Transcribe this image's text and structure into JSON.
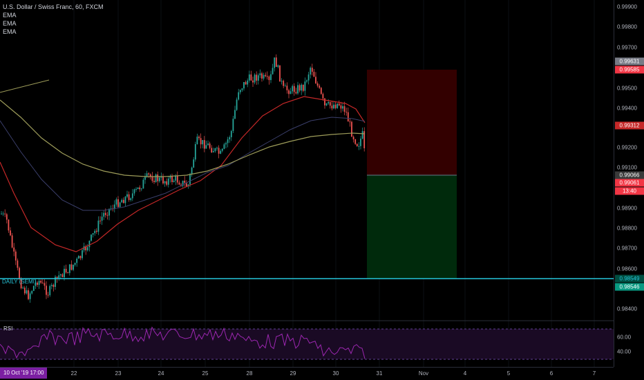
{
  "legend": {
    "title": "U.S. Dollar / Swiss Franc, 60, FXCM",
    "indicators": [
      "EMA",
      "EMA",
      "EMA"
    ]
  },
  "level_label": "DAILY (SEMI)",
  "rsi": {
    "label": "RSI",
    "ticks": [
      "60.00",
      "40.00"
    ]
  },
  "price_axis_ticks": [
    "0.99900",
    "0.99800",
    "0.99700",
    "0.99500",
    "0.99400",
    "0.99200",
    "0.99100",
    "0.98900",
    "0.98800",
    "0.98700",
    "0.98600",
    "0.98400"
  ],
  "price_tags": {
    "p1": "0.99631",
    "stop": "0.99585",
    "ema": "0.99312",
    "entry": "0.99066",
    "last": "0.99061",
    "countdown": "13:40",
    "level": "0.98549",
    "target": "0.98546"
  },
  "time_axis": {
    "cursor": "10 Oct '19  17:00",
    "labels": [
      "22",
      "23",
      "24",
      "25",
      "28",
      "29",
      "30",
      "31",
      "Nov",
      "4",
      "5",
      "6",
      "7"
    ]
  },
  "colors": {
    "up": "#26a69a",
    "down": "#ef5350",
    "ema_fast": "#c62828",
    "ema_mid": "#3b3f6b",
    "ema_slow": "#9e9d5a",
    "rsi": "#9c27b0",
    "level": "#26c6da",
    "stop_zone": "#330000",
    "target_zone": "#002a0c"
  }
}
